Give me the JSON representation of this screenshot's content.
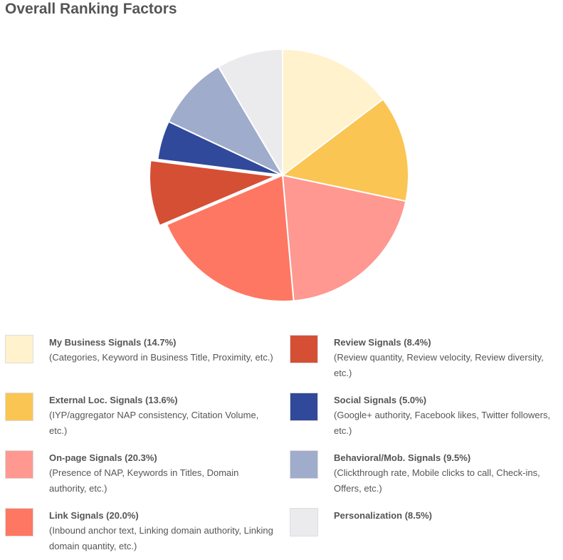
{
  "title": "Overall Ranking Factors",
  "chart_data": {
    "type": "pie",
    "title": "Overall Ranking Factors",
    "unit": "%",
    "slices": [
      {
        "label": "My Business Signals (14.7%)",
        "value": 14.7,
        "color": "#FFF2CC",
        "description": "(Categories, Keyword in Business Title, Proximity, etc.)"
      },
      {
        "label": "External Loc. Signals (13.6%)",
        "value": 13.6,
        "color": "#FBC553",
        "description": "(IYP/aggregator NAP consistency, Citation Volume, etc.)"
      },
      {
        "label": "On-page Signals (20.3%)",
        "value": 20.3,
        "color": "#FE9890",
        "description": "(Presence of NAP, Keywords in Titles, Domain authority, etc.)"
      },
      {
        "label": "Link Signals (20.0%)",
        "value": 20.0,
        "color": "#FE7762",
        "description": "(Inbound anchor text, Linking domain authority, Linking domain quantity, etc.)"
      },
      {
        "label": "Review Signals (8.4%)",
        "value": 8.4,
        "color": "#D54F35",
        "description": "(Review quantity, Review velocity, Review diversity, etc.)",
        "exploded": true
      },
      {
        "label": "Social Signals (5.0%)",
        "value": 5.0,
        "color": "#30499B",
        "description": "(Google+ authority, Facebook likes, Twitter followers, etc.)"
      },
      {
        "label": "Behavioral/Mob. Signals (9.5%)",
        "value": 9.5,
        "color": "#A0ACCC",
        "description": "(Clickthrough rate, Mobile clicks to call, Check-ins, Offers, etc.)"
      },
      {
        "label": "Personalization (8.5%)",
        "value": 8.5,
        "color": "#EBEAEC",
        "description": ""
      }
    ],
    "legend_placement": "bottom"
  }
}
